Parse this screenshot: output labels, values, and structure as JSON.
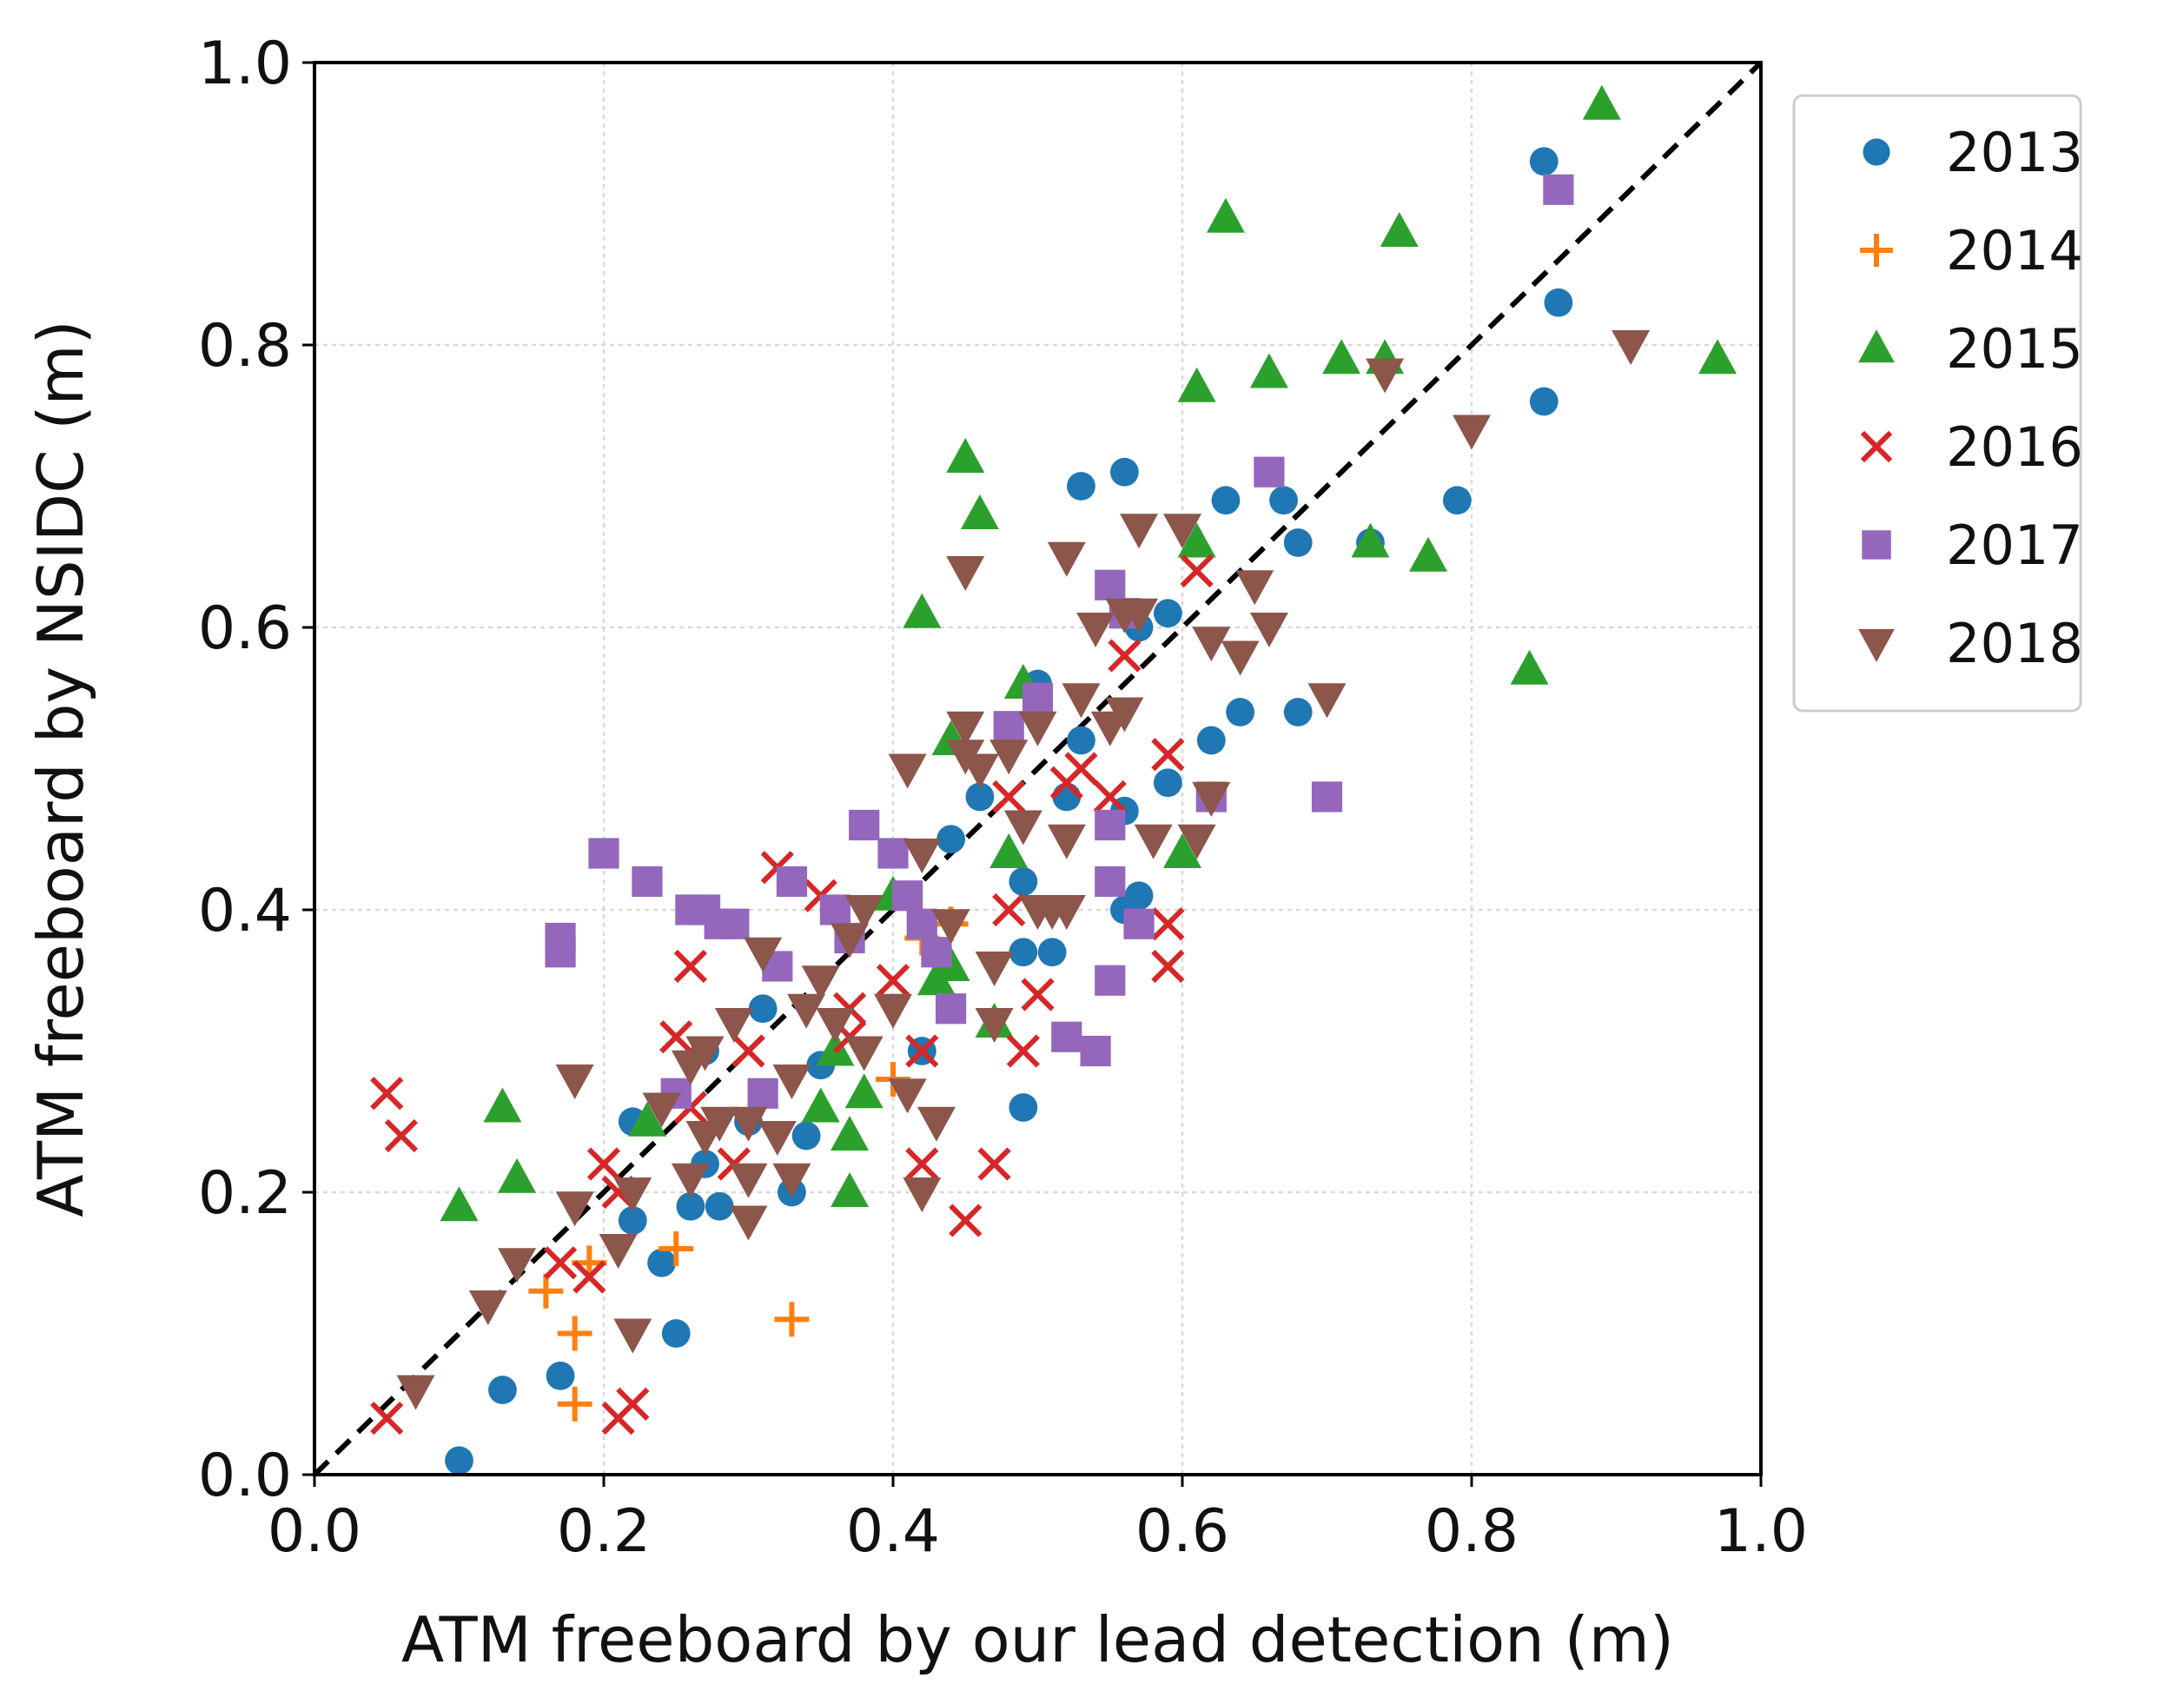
{
  "chart_data": {
    "type": "scatter",
    "title": "",
    "xlabel": "ATM freeboard by our lead detection (m)",
    "ylabel": "ATM freeboard by NSIDC (m)",
    "xlim": [
      0.0,
      1.0
    ],
    "ylim": [
      0.0,
      1.0
    ],
    "xticks": [
      "0.0",
      "0.2",
      "0.4",
      "0.6",
      "0.8",
      "1.0"
    ],
    "yticks": [
      "0.0",
      "0.2",
      "0.4",
      "0.6",
      "0.8",
      "1.0"
    ],
    "grid": true,
    "legend_position": "outside-right-top",
    "reference_line": {
      "type": "1:1",
      "style": "dashed",
      "color": "#000000"
    },
    "series": [
      {
        "name": "2013",
        "marker": "circle",
        "color": "#1f77b4",
        "points": [
          [
            0.1,
            0.01
          ],
          [
            0.13,
            0.06
          ],
          [
            0.17,
            0.07
          ],
          [
            0.25,
            0.1
          ],
          [
            0.24,
            0.15
          ],
          [
            0.26,
            0.19
          ],
          [
            0.22,
            0.18
          ],
          [
            0.22,
            0.25
          ],
          [
            0.27,
            0.22
          ],
          [
            0.28,
            0.19
          ],
          [
            0.27,
            0.3
          ],
          [
            0.3,
            0.25
          ],
          [
            0.31,
            0.33
          ],
          [
            0.33,
            0.2
          ],
          [
            0.34,
            0.24
          ],
          [
            0.35,
            0.29
          ],
          [
            0.41,
            0.41
          ],
          [
            0.42,
            0.3
          ],
          [
            0.44,
            0.45
          ],
          [
            0.46,
            0.48
          ],
          [
            0.49,
            0.42
          ],
          [
            0.49,
            0.37
          ],
          [
            0.49,
            0.26
          ],
          [
            0.51,
            0.37
          ],
          [
            0.5,
            0.56
          ],
          [
            0.52,
            0.48
          ],
          [
            0.53,
            0.52
          ],
          [
            0.53,
            0.7
          ],
          [
            0.56,
            0.71
          ],
          [
            0.56,
            0.4
          ],
          [
            0.56,
            0.47
          ],
          [
            0.57,
            0.41
          ],
          [
            0.57,
            0.6
          ],
          [
            0.59,
            0.61
          ],
          [
            0.59,
            0.49
          ],
          [
            0.62,
            0.52
          ],
          [
            0.63,
            0.69
          ],
          [
            0.64,
            0.54
          ],
          [
            0.67,
            0.69
          ],
          [
            0.68,
            0.54
          ],
          [
            0.68,
            0.66
          ],
          [
            0.73,
            0.66
          ],
          [
            0.79,
            0.69
          ],
          [
            0.85,
            0.76
          ],
          [
            0.86,
            0.83
          ],
          [
            0.85,
            0.93
          ]
        ]
      },
      {
        "name": "2014",
        "marker": "plus",
        "color": "#ff7f0e",
        "points": [
          [
            0.16,
            0.13
          ],
          [
            0.18,
            0.05
          ],
          [
            0.18,
            0.1
          ],
          [
            0.19,
            0.15
          ],
          [
            0.25,
            0.16
          ],
          [
            0.33,
            0.11
          ],
          [
            0.4,
            0.28
          ],
          [
            0.42,
            0.38
          ],
          [
            0.44,
            0.39
          ]
        ]
      },
      {
        "name": "2015",
        "marker": "triangle-up",
        "color": "#2ca02c",
        "points": [
          [
            0.1,
            0.19
          ],
          [
            0.13,
            0.26
          ],
          [
            0.14,
            0.21
          ],
          [
            0.23,
            0.25
          ],
          [
            0.35,
            0.26
          ],
          [
            0.36,
            0.3
          ],
          [
            0.37,
            0.2
          ],
          [
            0.37,
            0.24
          ],
          [
            0.38,
            0.27
          ],
          [
            0.4,
            0.41
          ],
          [
            0.43,
            0.35
          ],
          [
            0.42,
            0.61
          ],
          [
            0.44,
            0.52
          ],
          [
            0.44,
            0.36
          ],
          [
            0.45,
            0.72
          ],
          [
            0.46,
            0.68
          ],
          [
            0.47,
            0.32
          ],
          [
            0.48,
            0.44
          ],
          [
            0.49,
            0.56
          ],
          [
            0.6,
            0.44
          ],
          [
            0.61,
            0.66
          ],
          [
            0.61,
            0.77
          ],
          [
            0.63,
            0.89
          ],
          [
            0.66,
            0.78
          ],
          [
            0.71,
            0.79
          ],
          [
            0.73,
            0.66
          ],
          [
            0.74,
            0.79
          ],
          [
            0.75,
            0.88
          ],
          [
            0.77,
            0.65
          ],
          [
            0.84,
            0.57
          ],
          [
            0.89,
            0.97
          ],
          [
            0.97,
            0.79
          ]
        ]
      },
      {
        "name": "2016",
        "marker": "x",
        "color": "#d62728",
        "points": [
          [
            0.05,
            0.04
          ],
          [
            0.05,
            0.27
          ],
          [
            0.06,
            0.24
          ],
          [
            0.17,
            0.15
          ],
          [
            0.19,
            0.14
          ],
          [
            0.2,
            0.22
          ],
          [
            0.21,
            0.2
          ],
          [
            0.21,
            0.04
          ],
          [
            0.22,
            0.05
          ],
          [
            0.25,
            0.31
          ],
          [
            0.26,
            0.36
          ],
          [
            0.26,
            0.26
          ],
          [
            0.29,
            0.22
          ],
          [
            0.3,
            0.3
          ],
          [
            0.32,
            0.43
          ],
          [
            0.35,
            0.41
          ],
          [
            0.37,
            0.33
          ],
          [
            0.37,
            0.31
          ],
          [
            0.4,
            0.35
          ],
          [
            0.42,
            0.3
          ],
          [
            0.42,
            0.22
          ],
          [
            0.45,
            0.18
          ],
          [
            0.47,
            0.22
          ],
          [
            0.48,
            0.48
          ],
          [
            0.48,
            0.4
          ],
          [
            0.49,
            0.3
          ],
          [
            0.5,
            0.34
          ],
          [
            0.52,
            0.49
          ],
          [
            0.53,
            0.5
          ],
          [
            0.55,
            0.48
          ],
          [
            0.56,
            0.58
          ],
          [
            0.59,
            0.36
          ],
          [
            0.59,
            0.39
          ],
          [
            0.59,
            0.51
          ],
          [
            0.61,
            0.64
          ]
        ]
      },
      {
        "name": "2017",
        "marker": "square",
        "color": "#9467bd",
        "points": [
          [
            0.17,
            0.37
          ],
          [
            0.17,
            0.38
          ],
          [
            0.2,
            0.44
          ],
          [
            0.23,
            0.42
          ],
          [
            0.25,
            0.27
          ],
          [
            0.26,
            0.4
          ],
          [
            0.27,
            0.4
          ],
          [
            0.28,
            0.39
          ],
          [
            0.29,
            0.39
          ],
          [
            0.31,
            0.27
          ],
          [
            0.32,
            0.36
          ],
          [
            0.33,
            0.42
          ],
          [
            0.36,
            0.4
          ],
          [
            0.37,
            0.38
          ],
          [
            0.38,
            0.46
          ],
          [
            0.4,
            0.44
          ],
          [
            0.41,
            0.41
          ],
          [
            0.42,
            0.39
          ],
          [
            0.43,
            0.37
          ],
          [
            0.44,
            0.33
          ],
          [
            0.48,
            0.53
          ],
          [
            0.5,
            0.55
          ],
          [
            0.52,
            0.31
          ],
          [
            0.54,
            0.3
          ],
          [
            0.55,
            0.42
          ],
          [
            0.55,
            0.46
          ],
          [
            0.55,
            0.35
          ],
          [
            0.55,
            0.63
          ],
          [
            0.56,
            0.61
          ],
          [
            0.57,
            0.39
          ],
          [
            0.62,
            0.48
          ],
          [
            0.66,
            0.71
          ],
          [
            0.7,
            0.48
          ],
          [
            0.86,
            0.91
          ]
        ]
      },
      {
        "name": "2018",
        "marker": "triangle-down",
        "color": "#8c564b",
        "points": [
          [
            0.07,
            0.06
          ],
          [
            0.12,
            0.12
          ],
          [
            0.14,
            0.15
          ],
          [
            0.18,
            0.19
          ],
          [
            0.18,
            0.28
          ],
          [
            0.21,
            0.16
          ],
          [
            0.22,
            0.1
          ],
          [
            0.22,
            0.2
          ],
          [
            0.24,
            0.26
          ],
          [
            0.26,
            0.21
          ],
          [
            0.26,
            0.29
          ],
          [
            0.27,
            0.24
          ],
          [
            0.27,
            0.3
          ],
          [
            0.28,
            0.25
          ],
          [
            0.29,
            0.32
          ],
          [
            0.3,
            0.25
          ],
          [
            0.3,
            0.21
          ],
          [
            0.3,
            0.18
          ],
          [
            0.31,
            0.37
          ],
          [
            0.32,
            0.24
          ],
          [
            0.33,
            0.28
          ],
          [
            0.33,
            0.21
          ],
          [
            0.34,
            0.33
          ],
          [
            0.35,
            0.35
          ],
          [
            0.36,
            0.32
          ],
          [
            0.37,
            0.38
          ],
          [
            0.38,
            0.3
          ],
          [
            0.38,
            0.4
          ],
          [
            0.4,
            0.33
          ],
          [
            0.41,
            0.27
          ],
          [
            0.41,
            0.5
          ],
          [
            0.42,
            0.44
          ],
          [
            0.43,
            0.25
          ],
          [
            0.42,
            0.2
          ],
          [
            0.44,
            0.39
          ],
          [
            0.45,
            0.51
          ],
          [
            0.45,
            0.53
          ],
          [
            0.45,
            0.64
          ],
          [
            0.46,
            0.5
          ],
          [
            0.47,
            0.36
          ],
          [
            0.47,
            0.32
          ],
          [
            0.48,
            0.51
          ],
          [
            0.49,
            0.46
          ],
          [
            0.5,
            0.4
          ],
          [
            0.5,
            0.53
          ],
          [
            0.51,
            0.4
          ],
          [
            0.52,
            0.45
          ],
          [
            0.52,
            0.4
          ],
          [
            0.52,
            0.65
          ],
          [
            0.53,
            0.55
          ],
          [
            0.54,
            0.6
          ],
          [
            0.55,
            0.53
          ],
          [
            0.56,
            0.54
          ],
          [
            0.56,
            0.61
          ],
          [
            0.57,
            0.61
          ],
          [
            0.57,
            0.67
          ],
          [
            0.58,
            0.45
          ],
          [
            0.6,
            0.67
          ],
          [
            0.61,
            0.45
          ],
          [
            0.62,
            0.59
          ],
          [
            0.62,
            0.48
          ],
          [
            0.64,
            0.58
          ],
          [
            0.65,
            0.63
          ],
          [
            0.66,
            0.6
          ],
          [
            0.7,
            0.55
          ],
          [
            0.74,
            0.78
          ],
          [
            0.8,
            0.74
          ],
          [
            0.91,
            0.8
          ]
        ]
      }
    ]
  }
}
